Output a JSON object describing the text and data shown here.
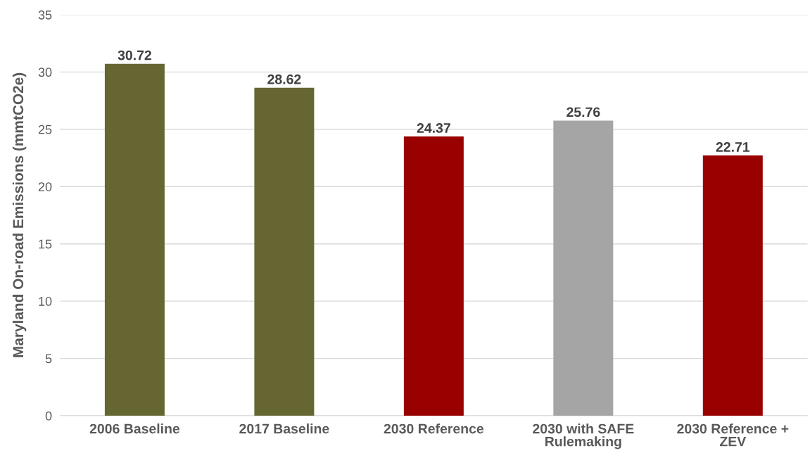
{
  "chart_data": {
    "type": "bar",
    "ylabel": "Maryland On-road Emissions (mmtCO2e)",
    "categories": [
      "2006 Baseline",
      "2017 Baseline",
      "2030 Reference",
      "2030 with SAFE\nRulemaking",
      "2030 Reference +\nZEV"
    ],
    "values": [
      30.72,
      28.62,
      24.37,
      25.76,
      22.71
    ],
    "colors": [
      "#666633",
      "#666633",
      "#990000",
      "#a5a5a5",
      "#990000"
    ],
    "ylim": [
      0,
      35
    ],
    "yticks": [
      0,
      5,
      10,
      15,
      20,
      25,
      30,
      35
    ],
    "grid": "y",
    "data_labels": true,
    "legend": false
  }
}
